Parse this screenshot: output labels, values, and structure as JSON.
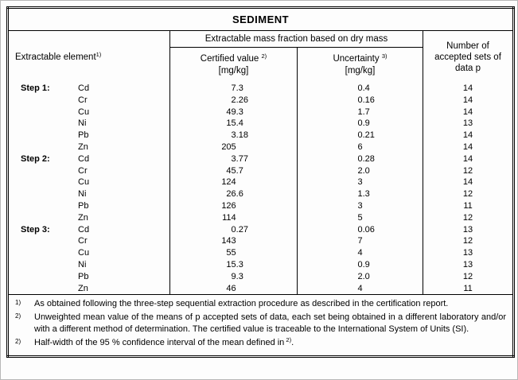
{
  "title": "SEDIMENT",
  "header": {
    "col_element": "Extractable element",
    "col_element_sup": "1)",
    "span_header": "Extractable mass fraction based on dry mass",
    "col_certified": "Certified value",
    "col_certified_sup": "2)",
    "col_certified_unit": "[mg/kg]",
    "col_uncertainty": "Uncertainty",
    "col_uncertainty_sup": "3)",
    "col_uncertainty_unit": "[mg/kg]",
    "col_sets": "Number of accepted sets of data p"
  },
  "rows": [
    {
      "step": "Step 1:",
      "element": "Cd",
      "certified": "7.3",
      "uncertainty": "0.4",
      "sets": "14"
    },
    {
      "step": "",
      "element": "Cr",
      "certified": "2.26",
      "uncertainty": "0.16",
      "sets": "14"
    },
    {
      "step": "",
      "element": "Cu",
      "certified": "49.3",
      "uncertainty": "1.7",
      "sets": "14"
    },
    {
      "step": "",
      "element": "Ni",
      "certified": "15.4",
      "uncertainty": "0.9",
      "sets": "13"
    },
    {
      "step": "",
      "element": "Pb",
      "certified": "3.18",
      "uncertainty": "0.21",
      "sets": "14"
    },
    {
      "step": "",
      "element": "Zn",
      "certified": "205",
      "uncertainty": "6",
      "sets": "14"
    },
    {
      "step": "Step 2:",
      "element": "Cd",
      "certified": "3.77",
      "uncertainty": "0.28",
      "sets": "14"
    },
    {
      "step": "",
      "element": "Cr",
      "certified": "45.7",
      "uncertainty": "2.0",
      "sets": "12"
    },
    {
      "step": "",
      "element": "Cu",
      "certified": "124",
      "uncertainty": "3",
      "sets": "14"
    },
    {
      "step": "",
      "element": "Ni",
      "certified": "26.6",
      "uncertainty": "1.3",
      "sets": "12"
    },
    {
      "step": "",
      "element": "Pb",
      "certified": "126",
      "uncertainty": "3",
      "sets": "11"
    },
    {
      "step": "",
      "element": "Zn",
      "certified": "114",
      "uncertainty": "5",
      "sets": "12"
    },
    {
      "step": "Step 3:",
      "element": "Cd",
      "certified": "0.27",
      "uncertainty": "0.06",
      "sets": "13"
    },
    {
      "step": "",
      "element": "Cr",
      "certified": "143",
      "uncertainty": "7",
      "sets": "12"
    },
    {
      "step": "",
      "element": "Cu",
      "certified": "55",
      "uncertainty": "4",
      "sets": "13"
    },
    {
      "step": "",
      "element": "Ni",
      "certified": "15.3",
      "uncertainty": "0.9",
      "sets": "13"
    },
    {
      "step": "",
      "element": "Pb",
      "certified": "9.3",
      "uncertainty": "2.0",
      "sets": "12"
    },
    {
      "step": "",
      "element": "Zn",
      "certified": "46",
      "uncertainty": "4",
      "sets": "11"
    }
  ],
  "footnotes": [
    {
      "marker": "1)",
      "text": "As obtained following the three-step sequential extraction procedure as described in the certification report.",
      "justify": false,
      "suffix_sup": "",
      "suffix_end": ""
    },
    {
      "marker": "2)",
      "text": "Unweighted mean value of the means of p accepted sets of data, each set being obtained in a different laboratory and/or with a different method of determination. The certified value is traceable to the International System of Units (SI).",
      "justify": true,
      "suffix_sup": "",
      "suffix_end": ""
    },
    {
      "marker": "2)",
      "text": "Half-width of the 95 % confidence interval of the mean defined in",
      "justify": false,
      "suffix_sup": "2)",
      "suffix_end": "."
    }
  ]
}
